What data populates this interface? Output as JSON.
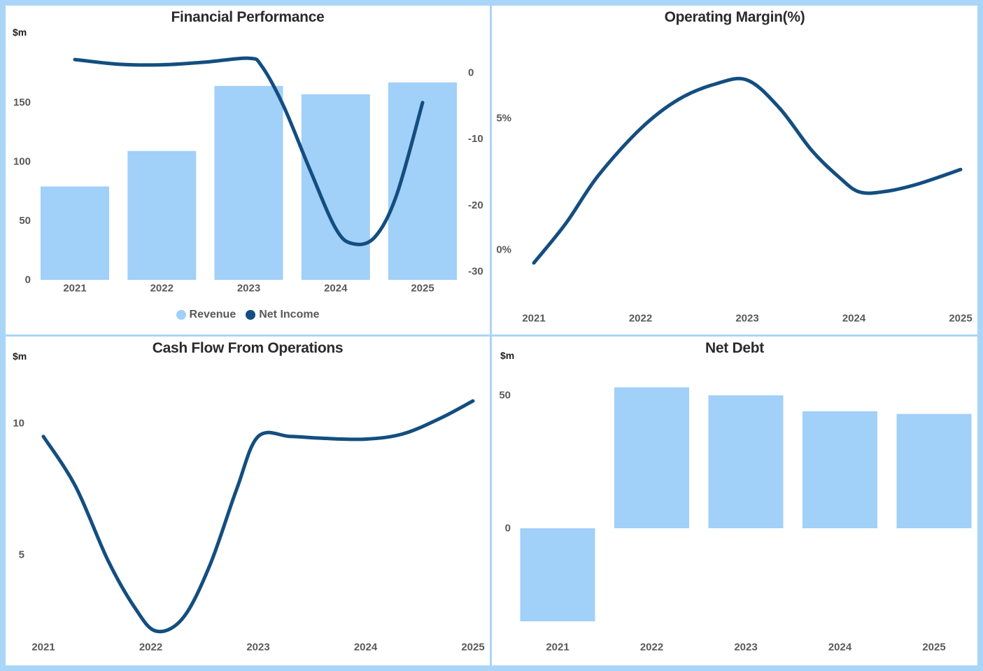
{
  "window": {
    "background_color": "#A9D6F8",
    "panel_color": "#FFFFFF"
  },
  "colors": {
    "bar": "#A1D0F8",
    "line": "#144E80",
    "tick_text": "#595959",
    "title_text": "#2B2B2B"
  },
  "chart_data": [
    {
      "type": "bar+line combo",
      "title": "Financial Performance",
      "unit_label": "$m",
      "categories": [
        "2021",
        "2022",
        "2023",
        "2024",
        "2025"
      ],
      "series": [
        {
          "name": "Revenue",
          "type": "bar",
          "axis": "left",
          "values": [
            79,
            109,
            164,
            157,
            167
          ]
        },
        {
          "name": "Net Income",
          "type": "line",
          "axis": "right",
          "values": [
            2,
            1.2,
            2.2,
            -26,
            -4.5
          ],
          "curve": [
            [
              2021,
              2
            ],
            [
              2021.5,
              1.3
            ],
            [
              2022,
              1.2
            ],
            [
              2022.5,
              1.6
            ],
            [
              2023,
              2.2
            ],
            [
              2023.15,
              1
            ],
            [
              2023.4,
              -5
            ],
            [
              2023.7,
              -14.5
            ],
            [
              2024,
              -23.5
            ],
            [
              2024.2,
              -25.8
            ],
            [
              2024.45,
              -24.8
            ],
            [
              2024.7,
              -18.5
            ],
            [
              2025,
              -4.5
            ]
          ]
        }
      ],
      "left_axis": {
        "ticks": [
          {
            "label": "0",
            "value": 0
          },
          {
            "label": "50",
            "value": 50
          },
          {
            "label": "100",
            "value": 100
          },
          {
            "label": "150",
            "value": 150
          }
        ]
      },
      "right_axis": {
        "ticks": [
          {
            "label": "0",
            "value": 0
          },
          {
            "label": "-10",
            "value": -10
          },
          {
            "label": "-20",
            "value": -20
          },
          {
            "label": "-30",
            "value": -30
          }
        ]
      },
      "legend": [
        {
          "label": "Revenue",
          "color": "#A1D0F8"
        },
        {
          "label": "Net Income",
          "color": "#144E80"
        }
      ],
      "grid": "off",
      "legend_position": "bottom-center"
    },
    {
      "type": "line",
      "title": "Operating Margin(%)",
      "categories": [
        "2021",
        "2022",
        "2023",
        "2024",
        "2025"
      ],
      "series": [
        {
          "name": "Operating Margin",
          "type": "line",
          "axis": "left",
          "values": [
            -0.5,
            4.6,
            6.45,
            2.2,
            3.05
          ],
          "curve": [
            [
              2021,
              -0.5
            ],
            [
              2021.3,
              1
            ],
            [
              2021.6,
              2.8
            ],
            [
              2022,
              4.6
            ],
            [
              2022.35,
              5.7
            ],
            [
              2022.7,
              6.3
            ],
            [
              2023,
              6.45
            ],
            [
              2023.3,
              5.4
            ],
            [
              2023.6,
              3.8
            ],
            [
              2023.85,
              2.8
            ],
            [
              2024.05,
              2.2
            ],
            [
              2024.3,
              2.22
            ],
            [
              2024.6,
              2.5
            ],
            [
              2025,
              3.05
            ]
          ]
        }
      ],
      "left_axis": {
        "ticks": [
          {
            "label": "5%",
            "value": 5
          },
          {
            "label": "0%",
            "value": 0
          }
        ]
      },
      "grid": "off"
    },
    {
      "type": "line",
      "title": "Cash Flow From Operations",
      "unit_label": "$m",
      "categories": [
        "2021",
        "2022",
        "2023",
        "2024",
        "2025"
      ],
      "series": [
        {
          "name": "Cash Flow From Operations",
          "type": "line",
          "axis": "left",
          "values": [
            9.5,
            2.15,
            9.5,
            9.4,
            10.85
          ],
          "curve": [
            [
              2021,
              9.5
            ],
            [
              2021.3,
              7.6
            ],
            [
              2021.6,
              4.8
            ],
            [
              2021.85,
              3
            ],
            [
              2022.05,
              2.1
            ],
            [
              2022.3,
              2.6
            ],
            [
              2022.55,
              4.6
            ],
            [
              2022.8,
              7.5
            ],
            [
              2023,
              9.5
            ],
            [
              2023.3,
              9.5
            ],
            [
              2023.6,
              9.43
            ],
            [
              2024,
              9.4
            ],
            [
              2024.35,
              9.6
            ],
            [
              2024.7,
              10.2
            ],
            [
              2025,
              10.85
            ]
          ]
        }
      ],
      "left_axis": {
        "ticks": [
          {
            "label": "10",
            "value": 10
          },
          {
            "label": "5",
            "value": 5
          }
        ]
      },
      "grid": "off"
    },
    {
      "type": "bar",
      "title": "Net Debt",
      "unit_label": "$m",
      "categories": [
        "2021",
        "2022",
        "2023",
        "2024",
        "2025"
      ],
      "series": [
        {
          "name": "Net Debt",
          "type": "bar",
          "axis": "left",
          "values": [
            -35,
            53,
            50,
            44,
            43
          ]
        }
      ],
      "left_axis": {
        "ticks": [
          {
            "label": "50",
            "value": 50
          },
          {
            "label": "0",
            "value": 0
          }
        ]
      },
      "grid": "off"
    }
  ]
}
